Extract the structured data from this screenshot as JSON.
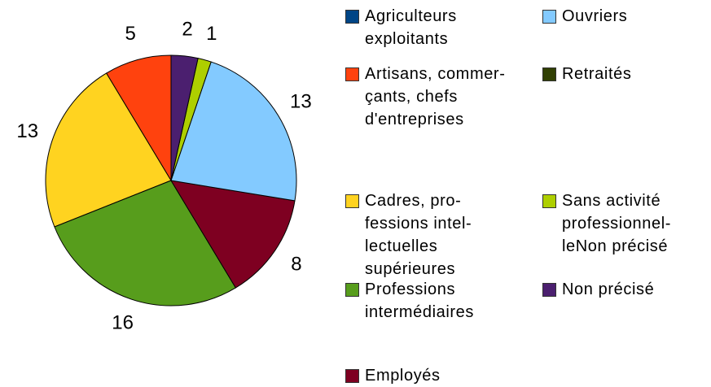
{
  "chart_data": {
    "type": "pie",
    "categories": [
      "Agriculteurs exploitants",
      "Artisans, commer­çants, chefs d'entreprises",
      "Cadres, pro­fessions intel­lectuelles supérieures",
      "Professions intermé­diaires",
      "Employés",
      "Ouvriers",
      "Retraités",
      "Sans activité professionnel­leNon précisé",
      "Non précisé"
    ],
    "values": [
      0,
      5,
      13,
      16,
      8,
      13,
      0,
      1,
      2
    ],
    "colors": [
      "#004586",
      "#ff420e",
      "#ffd320",
      "#579d1c",
      "#7e0021",
      "#83caff",
      "#314004",
      "#aecf00",
      "#4b1f6f"
    ]
  }
}
